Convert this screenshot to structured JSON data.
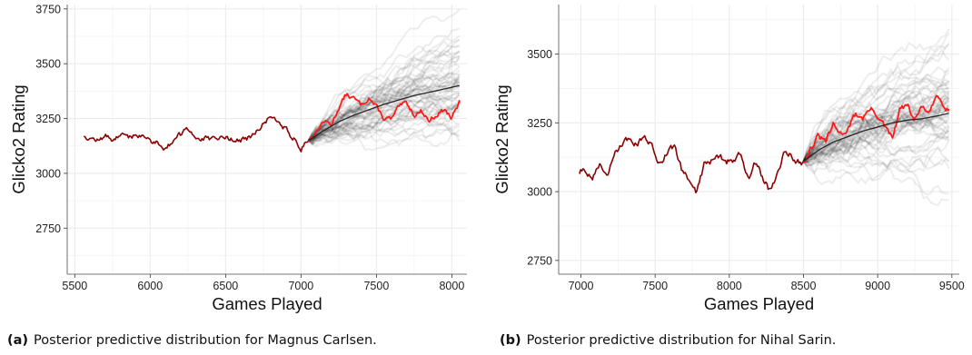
{
  "figure": {
    "colors": {
      "history": "#8b0000",
      "observed": "#ff1a1a",
      "mean": "#262626",
      "draws": "#000000",
      "grid": "#ebebeb"
    }
  },
  "chart_data": [
    {
      "type": "line",
      "panel": "a",
      "caption_tag": "(a)",
      "caption": "Posterior predictive distribution for Magnus Carlsen.",
      "xlabel": "Games Played",
      "ylabel": "Glicko2 Rating",
      "xlim": [
        5450,
        8100
      ],
      "ylim": [
        2540,
        3770
      ],
      "xticks": [
        5500,
        6000,
        6500,
        7000,
        7500,
        8000
      ],
      "yticks": [
        2750,
        3000,
        3250,
        3500,
        3750
      ],
      "grid": true,
      "forecast_start": 7050,
      "forecast_end": 8050,
      "posterior_draws": 60,
      "series": [
        {
          "role": "history",
          "x": [
            5560,
            5600,
            5650,
            5700,
            5750,
            5800,
            5850,
            5900,
            5950,
            6000,
            6050,
            6100,
            6150,
            6200,
            6250,
            6300,
            6350,
            6400,
            6450,
            6500,
            6550,
            6600,
            6650,
            6700,
            6750,
            6800,
            6850,
            6900,
            6950,
            7000,
            7050
          ],
          "values": [
            3175,
            3165,
            3150,
            3170,
            3155,
            3175,
            3160,
            3180,
            3165,
            3150,
            3140,
            3120,
            3145,
            3175,
            3195,
            3170,
            3160,
            3150,
            3155,
            3165,
            3155,
            3150,
            3160,
            3180,
            3225,
            3260,
            3245,
            3205,
            3160,
            3115,
            3150
          ]
        },
        {
          "role": "observed",
          "x": [
            7050,
            7100,
            7150,
            7200,
            7250,
            7300,
            7350,
            7400,
            7450,
            7500,
            7550,
            7600,
            7650,
            7700,
            7750,
            7800,
            7850,
            7900,
            7950,
            8000,
            8050
          ],
          "values": [
            3150,
            3190,
            3240,
            3220,
            3300,
            3360,
            3340,
            3310,
            3350,
            3300,
            3250,
            3245,
            3300,
            3320,
            3270,
            3285,
            3240,
            3270,
            3290,
            3250,
            3320
          ]
        },
        {
          "role": "mean",
          "x": [
            7050,
            7150,
            7250,
            7350,
            7450,
            7550,
            7650,
            7750,
            7850,
            7950,
            8050
          ],
          "values": [
            3150,
            3195,
            3235,
            3265,
            3290,
            3315,
            3335,
            3355,
            3370,
            3385,
            3400
          ]
        }
      ]
    },
    {
      "type": "line",
      "panel": "b",
      "caption_tag": "(b)",
      "caption": "Posterior predictive distribution for Nihal Sarin.",
      "xlabel": "Games Played",
      "ylabel": "Glicko2 Rating",
      "xlim": [
        6850,
        9550
      ],
      "ylim": [
        2700,
        3680
      ],
      "xticks": [
        7000,
        7500,
        8000,
        8500,
        9000,
        9500
      ],
      "yticks": [
        2750,
        3000,
        3250,
        3500
      ],
      "grid": true,
      "forecast_start": 8500,
      "forecast_end": 9480,
      "posterior_draws": 60,
      "series": [
        {
          "role": "history",
          "x": [
            6990,
            7030,
            7080,
            7130,
            7180,
            7230,
            7280,
            7330,
            7380,
            7430,
            7480,
            7530,
            7580,
            7630,
            7680,
            7730,
            7780,
            7830,
            7880,
            7930,
            7980,
            8030,
            8080,
            8130,
            8180,
            8230,
            8280,
            8330,
            8380,
            8430,
            8480,
            8500
          ],
          "values": [
            3070,
            3080,
            3050,
            3100,
            3060,
            3130,
            3170,
            3190,
            3180,
            3185,
            3170,
            3110,
            3140,
            3160,
            3080,
            3040,
            3000,
            3095,
            3110,
            3130,
            3110,
            3120,
            3130,
            3050,
            3110,
            3040,
            3000,
            3080,
            3150,
            3120,
            3110,
            3110
          ]
        },
        {
          "role": "observed",
          "x": [
            8500,
            8550,
            8600,
            8650,
            8700,
            8750,
            8800,
            8850,
            8900,
            8950,
            9000,
            9050,
            9100,
            9150,
            9200,
            9250,
            9300,
            9350,
            9400,
            9450,
            9480
          ],
          "values": [
            3110,
            3160,
            3200,
            3180,
            3240,
            3210,
            3230,
            3280,
            3270,
            3300,
            3280,
            3230,
            3190,
            3300,
            3310,
            3260,
            3310,
            3280,
            3350,
            3320,
            3300
          ]
        },
        {
          "role": "mean",
          "x": [
            8500,
            8600,
            8700,
            8800,
            8900,
            9000,
            9100,
            9200,
            9300,
            9400,
            9480
          ],
          "values": [
            3110,
            3150,
            3180,
            3200,
            3220,
            3235,
            3250,
            3260,
            3265,
            3275,
            3285
          ]
        }
      ]
    }
  ]
}
